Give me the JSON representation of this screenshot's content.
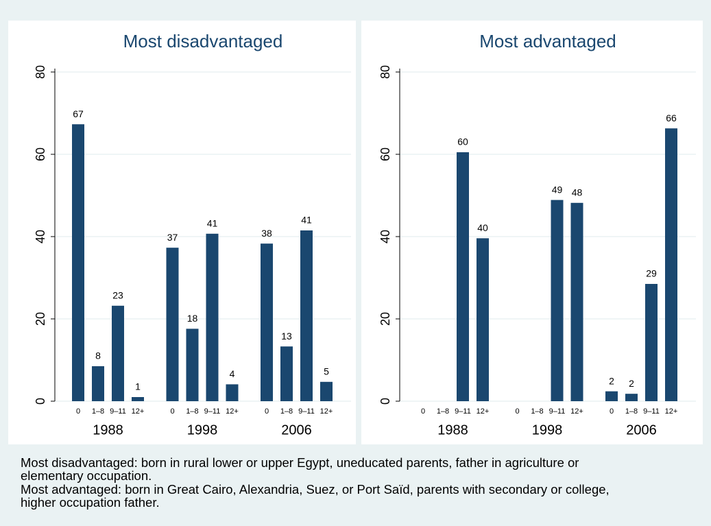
{
  "chart_data": [
    {
      "type": "bar",
      "title": "Most disadvantaged",
      "color": "#1a476f",
      "categories": [
        "0",
        "1–8",
        "9–11",
        "12+",
        "0",
        "1–8",
        "9–11",
        "12+",
        "0",
        "1–8",
        "9–11",
        "12+"
      ],
      "groups": [
        "1988",
        "1998",
        "2006"
      ],
      "values": [
        67.3,
        8.5,
        23.2,
        1,
        37.3,
        17.6,
        40.7,
        4.1,
        38.3,
        13.3,
        41.5,
        4.7
      ],
      "value_labels": [
        "67",
        "8",
        "23",
        "1",
        "37",
        "18",
        "41",
        "4",
        "38",
        "13",
        "41",
        "5"
      ],
      "ylim": [
        0,
        80
      ],
      "yticks": [
        0,
        20,
        40,
        60,
        80
      ],
      "grid": true
    },
    {
      "type": "bar",
      "title": "Most advantaged",
      "color": "#1a476f",
      "categories": [
        "0",
        "1–8",
        "9–11",
        "12+",
        "0",
        "1–8",
        "9–11",
        "12+",
        "0",
        "1–8",
        "9–11",
        "12+"
      ],
      "groups": [
        "1988",
        "1998",
        "2006"
      ],
      "values": [
        null,
        null,
        60.5,
        39.6,
        null,
        null,
        48.9,
        48.2,
        2.4,
        1.8,
        28.5,
        66.3
      ],
      "value_labels": [
        null,
        null,
        "60",
        "40",
        null,
        null,
        "49",
        "48",
        "2",
        "2",
        "29",
        "66"
      ],
      "ylim": [
        0,
        80
      ],
      "yticks": [
        0,
        20,
        40,
        60,
        80
      ],
      "grid": true
    }
  ],
  "note": [
    "Most disadvantaged: born in rural lower or upper Egypt, uneducated parents, father in agriculture or",
    "elementary occupation.",
    "Most advantaged: born in Great Cairo, Alexandria, Suez, or Port Saïd, parents with secondary or college,",
    "higher occupation father."
  ]
}
